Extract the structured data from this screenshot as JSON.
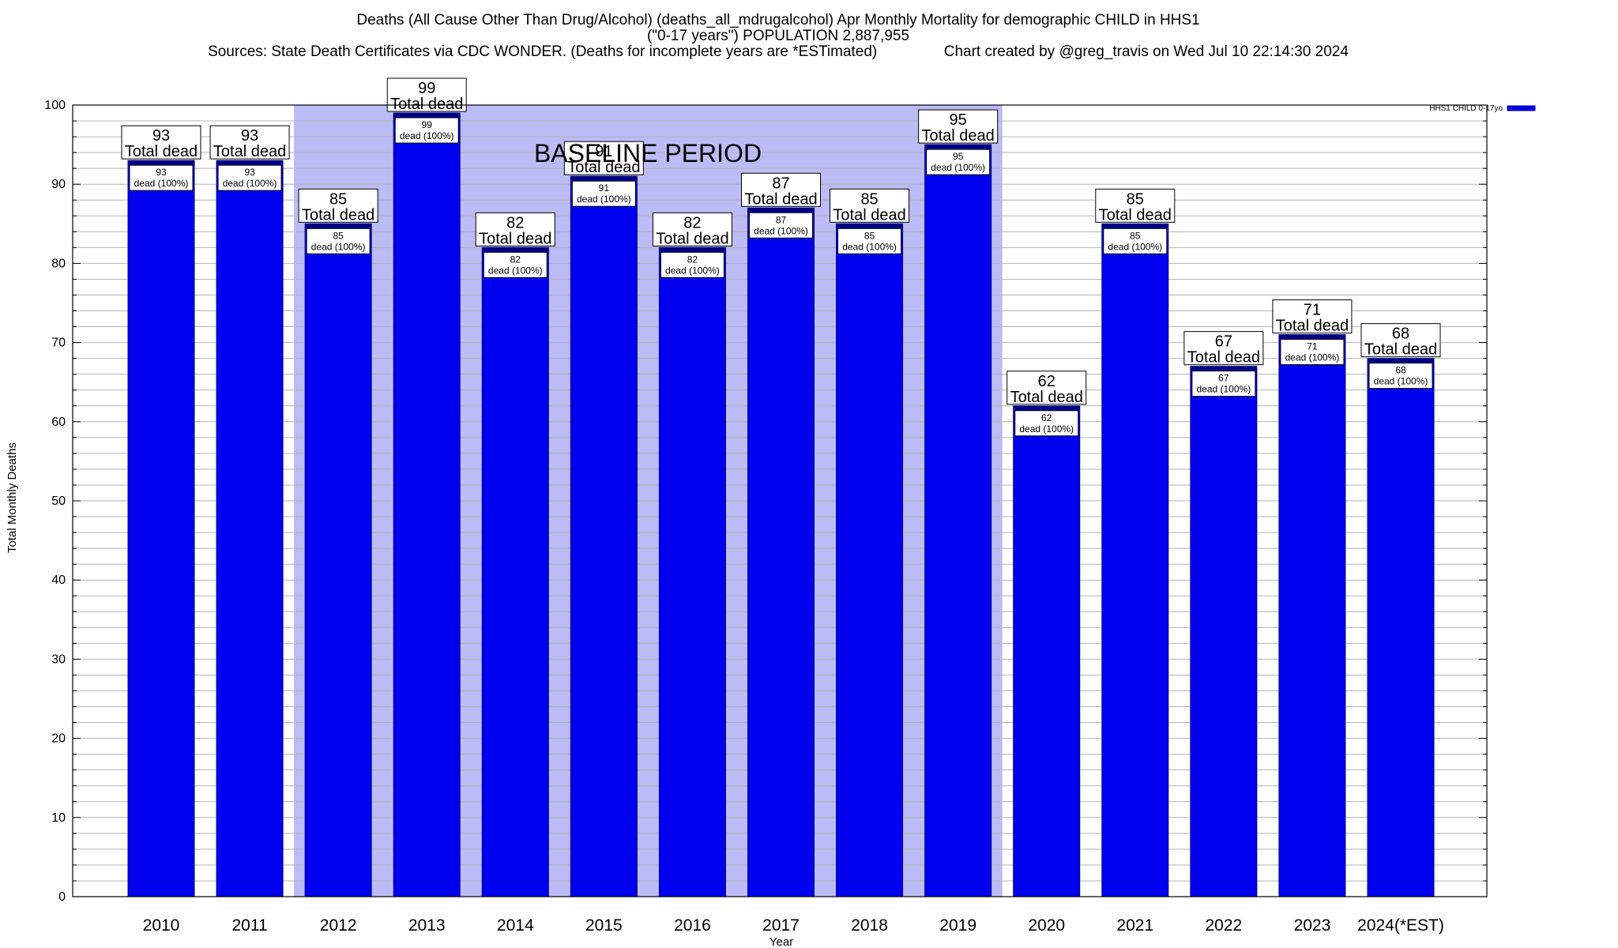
{
  "chart_data": {
    "type": "bar",
    "title_lines": [
      "Deaths (All Cause Other Than Drug/Alcohol) (deaths_all_mdrugalcohol) Apr Monthly Mortality for demographic CHILD in HHS1",
      "(\"0-17 years\") POPULATION 2,887,955",
      "Sources: State Death Certificates via CDC WONDER. (Deaths for incomplete years are *ESTimated)                Chart created by @greg_travis on Wed Jul 10 22:14:30 2024"
    ],
    "xlabel": "Year",
    "ylabel": "Total Monthly Deaths",
    "ylim": [
      0,
      100
    ],
    "yticks": [
      "0",
      "10",
      "20",
      "30",
      "40",
      "50",
      "60",
      "70",
      "80",
      "90",
      "100"
    ],
    "categories": [
      "2010",
      "2011",
      "2012",
      "2013",
      "2014",
      "2015",
      "2016",
      "2017",
      "2018",
      "2019",
      "2020",
      "2021",
      "2022",
      "2023",
      "2024(*EST)"
    ],
    "series": [
      {
        "name": "HHS1 CHILD 0-17yo",
        "values": [
          93,
          93,
          85,
          99,
          82,
          91,
          82,
          87,
          85,
          95,
          62,
          85,
          67,
          71,
          68
        ],
        "color": "#0000ee"
      }
    ],
    "top_labels": [
      [
        "93",
        "Total dead"
      ],
      [
        "93",
        "Total dead"
      ],
      [
        "85",
        "Total dead"
      ],
      [
        "99",
        "Total dead"
      ],
      [
        "82",
        "Total dead"
      ],
      [
        "91",
        "Total dead"
      ],
      [
        "82",
        "Total dead"
      ],
      [
        "87",
        "Total dead"
      ],
      [
        "85",
        "Total dead"
      ],
      [
        "95",
        "Total dead"
      ],
      [
        "62",
        "Total dead"
      ],
      [
        "85",
        "Total dead"
      ],
      [
        "67",
        "Total dead"
      ],
      [
        "71",
        "Total dead"
      ],
      [
        "68",
        "Total dead"
      ]
    ],
    "inner_labels": [
      [
        "93",
        "dead (100%)"
      ],
      [
        "93",
        "dead (100%)"
      ],
      [
        "85",
        "dead (100%)"
      ],
      [
        "99",
        "dead (100%)"
      ],
      [
        "82",
        "dead (100%)"
      ],
      [
        "91",
        "dead (100%)"
      ],
      [
        "82",
        "dead (100%)"
      ],
      [
        "87",
        "dead (100%)"
      ],
      [
        "85",
        "dead (100%)"
      ],
      [
        "95",
        "dead (100%)"
      ],
      [
        "62",
        "dead (100%)"
      ],
      [
        "85",
        "dead (100%)"
      ],
      [
        "67",
        "dead (100%)"
      ],
      [
        "71",
        "dead (100%)"
      ],
      [
        "68",
        "dead (100%)"
      ]
    ],
    "baseline_period": {
      "label": "BASELINE PERIOD",
      "start_category": "2012",
      "end_category": "2019",
      "color": "#bbbbf5"
    },
    "grid": "horizontal minor lines",
    "legend_position": "top-right outside plot",
    "colors": {
      "bar": "#0000ee",
      "bar_top": "#000080",
      "shade": "#bbbbf5",
      "grid": "#b4b4b4"
    }
  }
}
